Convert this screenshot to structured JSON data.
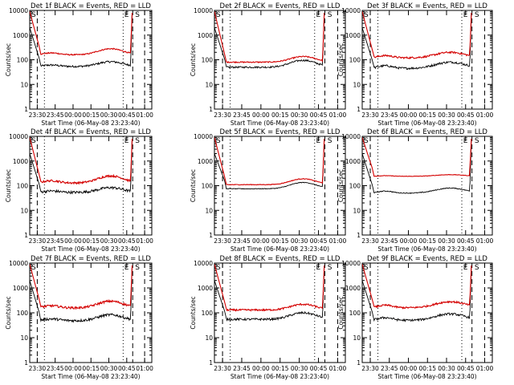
{
  "figure": {
    "title_template": "Det {n}f BLACK = Events, RED = LLD",
    "ylabel": "Counts/sec",
    "xlabel": "Start Time (06-May-08 23:23:40)",
    "xticks": [
      "23:30",
      "23:45",
      "00:00",
      "00:15",
      "00:30",
      "00:45",
      "01:00"
    ],
    "yticks": [
      "1",
      "10",
      "100",
      "1000",
      "10000"
    ],
    "marker_S": "S",
    "marker_E": "E",
    "colors": {
      "events": "#000000",
      "lld": "#d40000",
      "axis": "#000000"
    }
  },
  "chart_data": [
    {
      "type": "line",
      "title": "Det 1f BLACK = Events, RED = LLD",
      "series": [
        {
          "name": "Events",
          "shape": "A",
          "base": 55,
          "peak": 30,
          "noise": 0.09,
          "x_start": "23:33",
          "x_end": "00:48"
        },
        {
          "name": "LLD",
          "shape": "A",
          "base": 165,
          "peak": 120,
          "noise": 0.05,
          "x_start": "23:33",
          "x_end": "00:48"
        }
      ],
      "ylim": [
        1,
        10000
      ],
      "xlim": [
        "23:23:40",
        "01:06"
      ],
      "yscale": "log"
    },
    {
      "type": "line",
      "title": "Det 2f BLACK = Events, RED = LLD",
      "series": [
        {
          "name": "Events",
          "shape": "B",
          "base": 50,
          "peak": 45,
          "noise": 0.08,
          "x_start": "23:33",
          "x_end": "00:48"
        },
        {
          "name": "LLD",
          "shape": "B",
          "base": 80,
          "peak": 55,
          "noise": 0.05,
          "x_start": "23:33",
          "x_end": "00:48"
        }
      ],
      "ylim": [
        1,
        10000
      ],
      "xlim": [
        "23:23:40",
        "01:06"
      ],
      "yscale": "log"
    },
    {
      "type": "line",
      "title": "Det 3f BLACK = Events, RED = LLD",
      "series": [
        {
          "name": "Events",
          "shape": "C",
          "base": 45,
          "peak": 35,
          "noise": 0.1,
          "x_start": "23:33",
          "x_end": "00:48"
        },
        {
          "name": "LLD",
          "shape": "C",
          "base": 120,
          "peak": 80,
          "noise": 0.08,
          "x_start": "23:33",
          "x_end": "00:48"
        }
      ],
      "ylim": [
        1,
        10000
      ],
      "xlim": [
        "23:23:40",
        "01:06"
      ],
      "yscale": "log"
    },
    {
      "type": "line",
      "title": "Det 4f BLACK = Events, RED = LLD",
      "series": [
        {
          "name": "Events",
          "shape": "A",
          "base": 55,
          "peak": 30,
          "noise": 0.12,
          "x_start": "23:33",
          "x_end": "00:48"
        },
        {
          "name": "LLD",
          "shape": "A",
          "base": 135,
          "peak": 120,
          "noise": 0.09,
          "x_start": "23:33",
          "x_end": "00:48"
        }
      ],
      "ylim": [
        1,
        10000
      ],
      "xlim": [
        "23:23:40",
        "01:06"
      ],
      "yscale": "log"
    },
    {
      "type": "line",
      "title": "Det 5f BLACK = Events, RED = LLD",
      "series": [
        {
          "name": "Events",
          "shape": "B",
          "base": 75,
          "peak": 60,
          "noise": 0.03,
          "x_start": "23:33",
          "x_end": "00:48"
        },
        {
          "name": "LLD",
          "shape": "B",
          "base": 110,
          "peak": 80,
          "noise": 0.03,
          "x_start": "23:33",
          "x_end": "00:48"
        }
      ],
      "ylim": [
        1,
        10000
      ],
      "xlim": [
        "23:23:40",
        "01:06"
      ],
      "yscale": "log"
    },
    {
      "type": "line",
      "title": "Det 6f BLACK = Events, RED = LLD",
      "series": [
        {
          "name": "Events",
          "shape": "C",
          "base": 50,
          "peak": 30,
          "noise": 0.04,
          "x_start": "23:33",
          "x_end": "00:48"
        },
        {
          "name": "LLD",
          "shape": "C",
          "base": 240,
          "peak": 40,
          "noise": 0.02,
          "x_start": "23:33",
          "x_end": "00:48"
        }
      ],
      "ylim": [
        1,
        10000
      ],
      "xlim": [
        "23:23:40",
        "01:06"
      ],
      "yscale": "log"
    },
    {
      "type": "line",
      "title": "Det 7f BLACK = Events, RED = LLD",
      "series": [
        {
          "name": "Events",
          "shape": "A",
          "base": 50,
          "peak": 35,
          "noise": 0.12,
          "x_start": "23:33",
          "x_end": "00:48"
        },
        {
          "name": "LLD",
          "shape": "A",
          "base": 165,
          "peak": 135,
          "noise": 0.1,
          "x_start": "23:33",
          "x_end": "00:48"
        }
      ],
      "ylim": [
        1,
        10000
      ],
      "xlim": [
        "23:23:40",
        "01:06"
      ],
      "yscale": "log"
    },
    {
      "type": "line",
      "title": "Det 8f BLACK = Events, RED = LLD",
      "series": [
        {
          "name": "Events",
          "shape": "B",
          "base": 55,
          "peak": 45,
          "noise": 0.1,
          "x_start": "23:33",
          "x_end": "00:48"
        },
        {
          "name": "LLD",
          "shape": "B",
          "base": 130,
          "peak": 90,
          "noise": 0.08,
          "x_start": "23:33",
          "x_end": "00:48"
        }
      ],
      "ylim": [
        1,
        10000
      ],
      "xlim": [
        "23:23:40",
        "01:06"
      ],
      "yscale": "log"
    },
    {
      "type": "line",
      "title": "Det 9f BLACK = Events, RED = LLD",
      "series": [
        {
          "name": "Events",
          "shape": "C",
          "base": 50,
          "peak": 40,
          "noise": 0.1,
          "x_start": "23:33",
          "x_end": "00:48"
        },
        {
          "name": "LLD",
          "shape": "C",
          "base": 160,
          "peak": 120,
          "noise": 0.08,
          "x_start": "23:33",
          "x_end": "00:48"
        }
      ],
      "ylim": [
        1,
        10000
      ],
      "xlim": [
        "23:23:40",
        "01:06"
      ],
      "yscale": "log"
    }
  ]
}
